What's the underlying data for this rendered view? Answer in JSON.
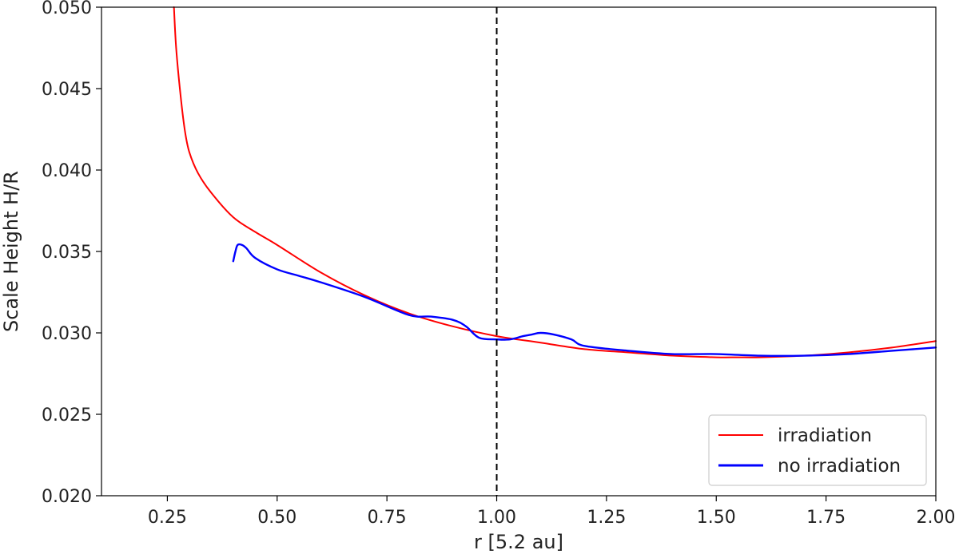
{
  "chart_data": {
    "type": "line",
    "xlabel": "r [5.2 au]",
    "ylabel": "Scale Height H/R",
    "xlim": [
      0.1,
      2.0
    ],
    "ylim": [
      0.02,
      0.05
    ],
    "xticks": [
      "0.25",
      "0.50",
      "0.75",
      "1.00",
      "1.25",
      "1.50",
      "1.75",
      "2.00"
    ],
    "xtick_values": [
      0.25,
      0.5,
      0.75,
      1.0,
      1.25,
      1.5,
      1.75,
      2.0
    ],
    "yticks": [
      "0.020",
      "0.025",
      "0.030",
      "0.035",
      "0.040",
      "0.045",
      "0.050"
    ],
    "ytick_values": [
      0.02,
      0.025,
      0.03,
      0.035,
      0.04,
      0.045,
      0.05
    ],
    "grid": false,
    "legend_position": "lower-right",
    "vertical_line": {
      "x": 1.0,
      "style": "dashed",
      "color": "#000000"
    },
    "series": [
      {
        "name": "irradiation",
        "color": "#ff0000",
        "x": [
          0.265,
          0.27,
          0.28,
          0.29,
          0.3,
          0.32,
          0.35,
          0.4,
          0.45,
          0.5,
          0.6,
          0.7,
          0.8,
          0.9,
          1.0,
          1.1,
          1.2,
          1.3,
          1.4,
          1.5,
          1.55,
          1.6,
          1.7,
          1.8,
          1.9,
          2.0
        ],
        "y": [
          0.05,
          0.0475,
          0.0446,
          0.0424,
          0.0411,
          0.0398,
          0.0386,
          0.0371,
          0.0362,
          0.0354,
          0.0337,
          0.0323,
          0.0312,
          0.0304,
          0.0298,
          0.0294,
          0.029,
          0.0288,
          0.0286,
          0.0285,
          0.0285,
          0.0285,
          0.0286,
          0.0288,
          0.0291,
          0.0295
        ]
      },
      {
        "name": "no irradiation",
        "color": "#0000ff",
        "x": [
          0.4,
          0.405,
          0.41,
          0.42,
          0.43,
          0.45,
          0.5,
          0.55,
          0.6,
          0.7,
          0.8,
          0.85,
          0.9,
          0.93,
          0.96,
          1.0,
          1.03,
          1.06,
          1.08,
          1.1,
          1.13,
          1.17,
          1.2,
          1.3,
          1.4,
          1.5,
          1.6,
          1.7,
          1.8,
          1.9,
          2.0
        ],
        "y": [
          0.0344,
          0.035,
          0.0354,
          0.0354,
          0.0352,
          0.0346,
          0.0339,
          0.0335,
          0.0331,
          0.0322,
          0.0311,
          0.031,
          0.0308,
          0.0304,
          0.0297,
          0.0296,
          0.0296,
          0.0298,
          0.0299,
          0.03,
          0.0299,
          0.0296,
          0.0292,
          0.0289,
          0.0287,
          0.0287,
          0.0286,
          0.0286,
          0.0287,
          0.0289,
          0.0291
        ]
      }
    ]
  }
}
